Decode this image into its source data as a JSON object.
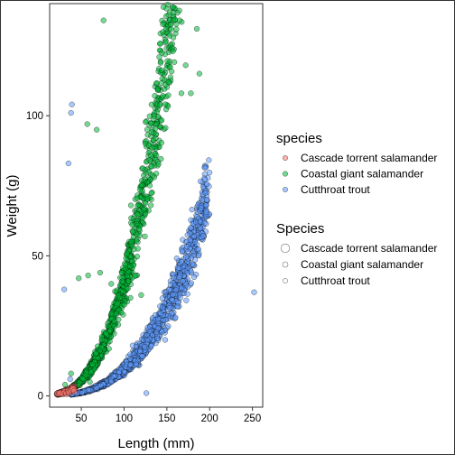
{
  "chart_data": {
    "type": "scatter",
    "title": "",
    "xlabel": "Length (mm)",
    "ylabel": "Weight (g)",
    "xlim": [
      13,
      262
    ],
    "ylim": [
      -4,
      140
    ],
    "x_ticks": [
      50,
      100,
      150,
      200,
      250
    ],
    "y_ticks": [
      0,
      50,
      100
    ],
    "grid": false,
    "series": [
      {
        "name": "Cascade torrent salamander",
        "color": "#F8766D",
        "growth": {
          "a": 0.0008,
          "b": 2.2,
          "x_range": [
            22,
            42
          ]
        },
        "points": [
          [
            26,
            1.0
          ],
          [
            29,
            0.8
          ],
          [
            31,
            1.5
          ],
          [
            33,
            0.9
          ],
          [
            35,
            1.8
          ],
          [
            36,
            1.2
          ],
          [
            38,
            2.0
          ],
          [
            40,
            2.4
          ],
          [
            42,
            1.6
          ]
        ]
      },
      {
        "name": "Coastal giant salamander",
        "color": "#00BA38",
        "growth": {
          "a": 8e-05,
          "b": 2.85,
          "x_range": [
            22,
            172
          ]
        },
        "points": [
          [
            76,
            134
          ],
          [
            165,
            134
          ],
          [
            185,
            131
          ],
          [
            188,
            115
          ],
          [
            172,
            118
          ],
          [
            157,
            123
          ],
          [
            152,
            112
          ],
          [
            167,
            108
          ],
          [
            178,
            108
          ],
          [
            57,
            97
          ],
          [
            68,
            95
          ],
          [
            47,
            42
          ],
          [
            58,
            43
          ],
          [
            72,
            44
          ],
          [
            85,
            40
          ],
          [
            108,
            68
          ],
          [
            132,
            82
          ],
          [
            95,
            35
          ],
          [
            38,
            8
          ],
          [
            31,
            4
          ],
          [
            60,
            5
          ],
          [
            120,
            36
          ]
        ]
      },
      {
        "name": "Cutthroat trout",
        "color": "#619CFF",
        "growth": {
          "a": 1.2e-05,
          "b": 2.95,
          "x_range": [
            38,
            200
          ]
        },
        "points": [
          [
            39,
            104
          ],
          [
            38,
            101
          ],
          [
            35,
            83
          ],
          [
            30,
            38
          ],
          [
            37,
            6
          ],
          [
            252,
            37
          ],
          [
            126,
            1
          ],
          [
            190,
            67
          ],
          [
            196,
            68
          ],
          [
            184,
            62
          ],
          [
            178,
            60
          ],
          [
            142,
            32
          ],
          [
            160,
            28
          ],
          [
            148,
            20
          ],
          [
            110,
            18
          ]
        ]
      }
    ],
    "legends": [
      {
        "title": "species",
        "labels": [
          "Cascade torrent salamander",
          "Coastal giant salamander",
          "Cutthroat trout"
        ]
      },
      {
        "title": "Species",
        "labels": [
          "Cascade torrent salamander",
          "Coastal giant salamander",
          "Cutthroat trout"
        ]
      }
    ],
    "legend_position": "right"
  }
}
